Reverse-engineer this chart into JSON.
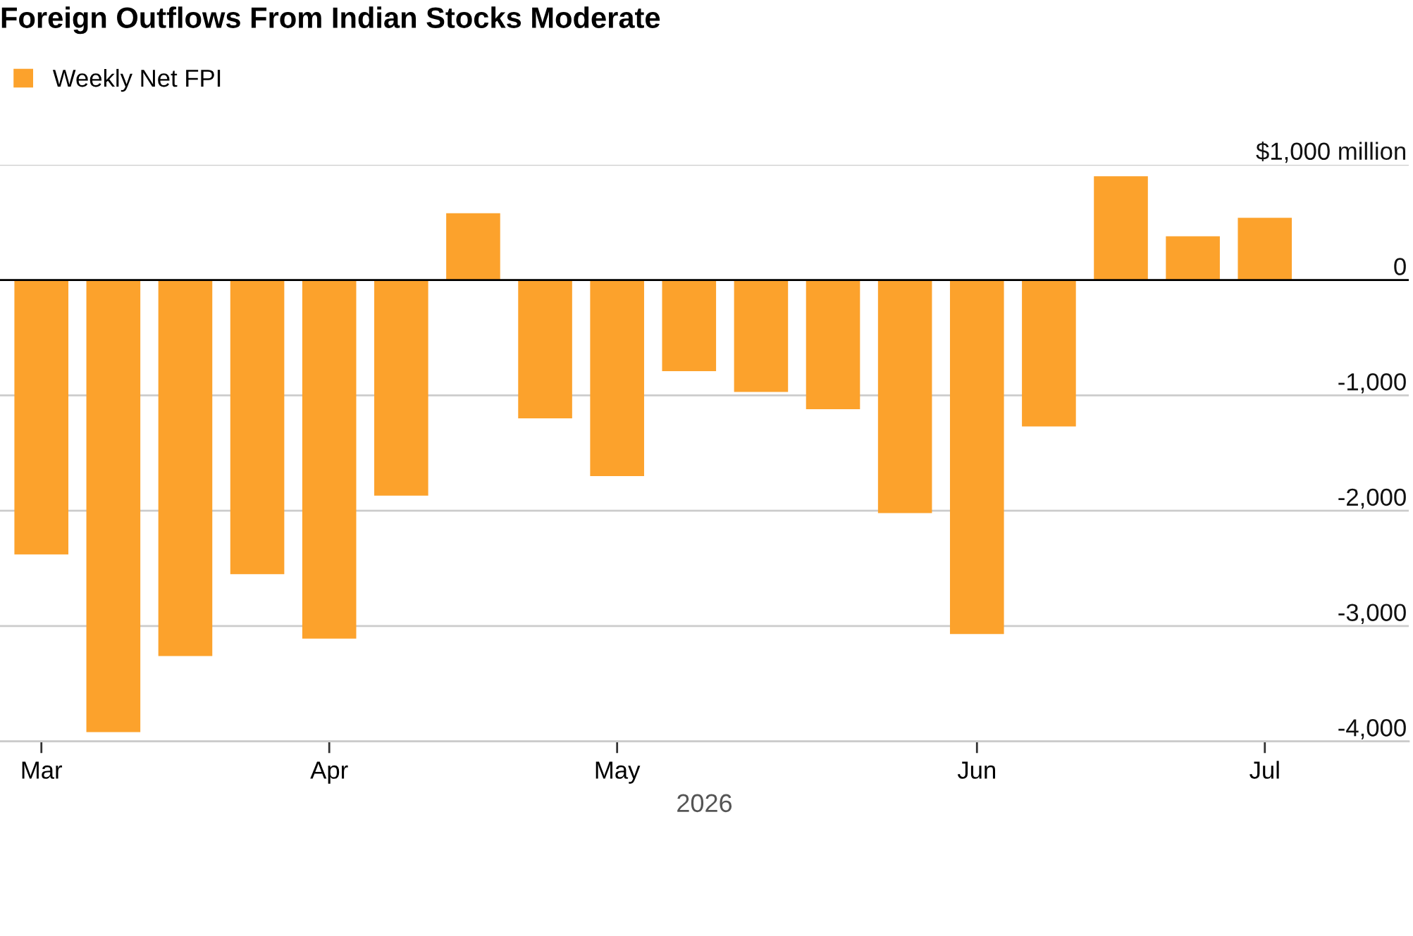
{
  "chart_data": {
    "type": "bar",
    "title": "Foreign Outflows From Indian Stocks Moderate",
    "xlabel": "2026",
    "categories": [
      "Mar",
      null,
      null,
      null,
      "Apr",
      null,
      null,
      null,
      "May",
      null,
      null,
      null,
      null,
      "Jun",
      null,
      null,
      null,
      "Jul"
    ],
    "series": [
      {
        "name": "Weekly Net FPI",
        "color": "#fca22c",
        "values": [
          -2380,
          -3920,
          -3260,
          -2550,
          -3110,
          -1870,
          580,
          -1200,
          -1700,
          -790,
          -970,
          -1120,
          -2020,
          -3070,
          -1270,
          900,
          380,
          540
        ]
      }
    ],
    "ylim": [
      -4000,
      1000
    ],
    "yticks": [
      {
        "value": -4000,
        "label": "-4,000"
      },
      {
        "value": -3000,
        "label": "-3,000"
      },
      {
        "value": -2000,
        "label": "-2,000"
      },
      {
        "value": -1000,
        "label": "-1,000"
      },
      0,
      {
        "value": 1000,
        "label": "$1,000 million"
      }
    ],
    "grid": "y",
    "legend": "top left"
  }
}
